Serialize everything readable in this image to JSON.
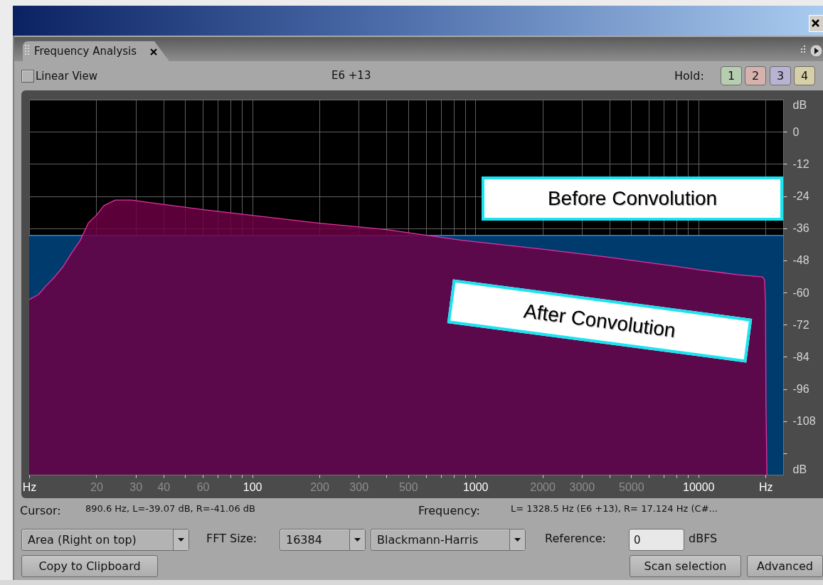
{
  "chart_data": {
    "type": "line",
    "title": "Frequency Analysis",
    "annotations": [
      "Linear View",
      "E6 +13",
      "Hold:",
      "1",
      "2",
      "3",
      "4",
      "Cursor:",
      "890.6 Hz, L=-39.07 dB, R=-41.06 dB",
      "Frequency:",
      "L= 1328.5 Hz (E6 +13), R= 17.124 Hz (C#...",
      "Area (Right on top)",
      "FFT Size:",
      "16384",
      "Blackmann-Harris",
      "Reference:",
      "0",
      "dBFS",
      "Copy to Clipboard",
      "Scan selection",
      "Advanced"
    ],
    "xlim": [
      10,
      24000
    ],
    "xticks": [
      {
        "value": 10,
        "label": "Hz"
      },
      20,
      30,
      40,
      {
        "value": 50,
        "label": null
      },
      60,
      {
        "value": 70,
        "label": null
      },
      {
        "value": 80,
        "label": null
      },
      {
        "value": 90,
        "label": null
      },
      100,
      200,
      300,
      {
        "value": 400,
        "label": null
      },
      500,
      {
        "value": 600,
        "label": null
      },
      {
        "value": 700,
        "label": null
      },
      {
        "value": 800,
        "label": null
      },
      {
        "value": 900,
        "label": null
      },
      1000,
      2000,
      3000,
      {
        "value": 4000,
        "label": null
      },
      5000,
      {
        "value": 6000,
        "label": null
      },
      {
        "value": 7000,
        "label": null
      },
      {
        "value": 8000,
        "label": null
      },
      {
        "value": 9000,
        "label": null
      },
      10000,
      {
        "value": 20000,
        "label": "Hz"
      }
    ],
    "ylim": [
      -128,
      12
    ],
    "yticks": [
      {
        "value": 10,
        "label": "dB"
      },
      0,
      -12,
      -24,
      -36,
      -48,
      -60,
      -72,
      -84,
      -96,
      -108,
      {
        "value": -120,
        "label": null
      },
      {
        "value": -126,
        "label": "dB"
      }
    ],
    "log": "x",
    "grid": true,
    "series": [
      {
        "name": "Before Convolution",
        "color": "#33a0ff",
        "x": [
          10,
          24000
        ],
        "values": [
          -38.7,
          -38.7
        ],
        "lower": [
          -128,
          -128
        ],
        "upper": [
          -38.7,
          -38.7
        ]
      },
      {
        "name": "After Convolution",
        "color": "#e432a0",
        "x": [
          10,
          11,
          11.9,
          13,
          14.2,
          15.5,
          16.9,
          18.4,
          20.1,
          21.6,
          24.3,
          28.8,
          39.2,
          60.5,
          100,
          200,
          400,
          870,
          2000,
          4000,
          7900,
          10100,
          14900,
          19400,
          19800,
          20000,
          20100,
          20300
        ],
        "values": [
          -62.6,
          -60.8,
          -57.5,
          -54.2,
          -50.3,
          -45.2,
          -40.7,
          -34.1,
          -31.0,
          -27.6,
          -25.5,
          -25.5,
          -27.0,
          -29.1,
          -31.2,
          -34.1,
          -36.5,
          -40.5,
          -43.8,
          -46.9,
          -50.2,
          -51.5,
          -53.3,
          -54.2,
          -55.3,
          -64,
          -102,
          -128
        ],
        "lower": [
          -128,
          -128,
          -128,
          -128,
          -128,
          -128,
          -128,
          -128,
          -128,
          -128,
          -128,
          -128,
          -128,
          -128,
          -128,
          -128,
          -128,
          -128,
          -128,
          -128,
          -128,
          -128,
          -128,
          -128,
          -128,
          -128,
          -128,
          -128
        ],
        "upper": [
          -62.6,
          -60.8,
          -57.5,
          -54.2,
          -50.3,
          -45.2,
          -40.7,
          -34.1,
          -31.0,
          -27.6,
          -25.5,
          -25.5,
          -27.0,
          -29.1,
          -31.2,
          -34.1,
          -36.5,
          -40.5,
          -43.8,
          -46.9,
          -50.2,
          -51.5,
          -53.3,
          -54.2,
          -55.3,
          -64,
          -102,
          -128
        ]
      }
    ]
  }
}
